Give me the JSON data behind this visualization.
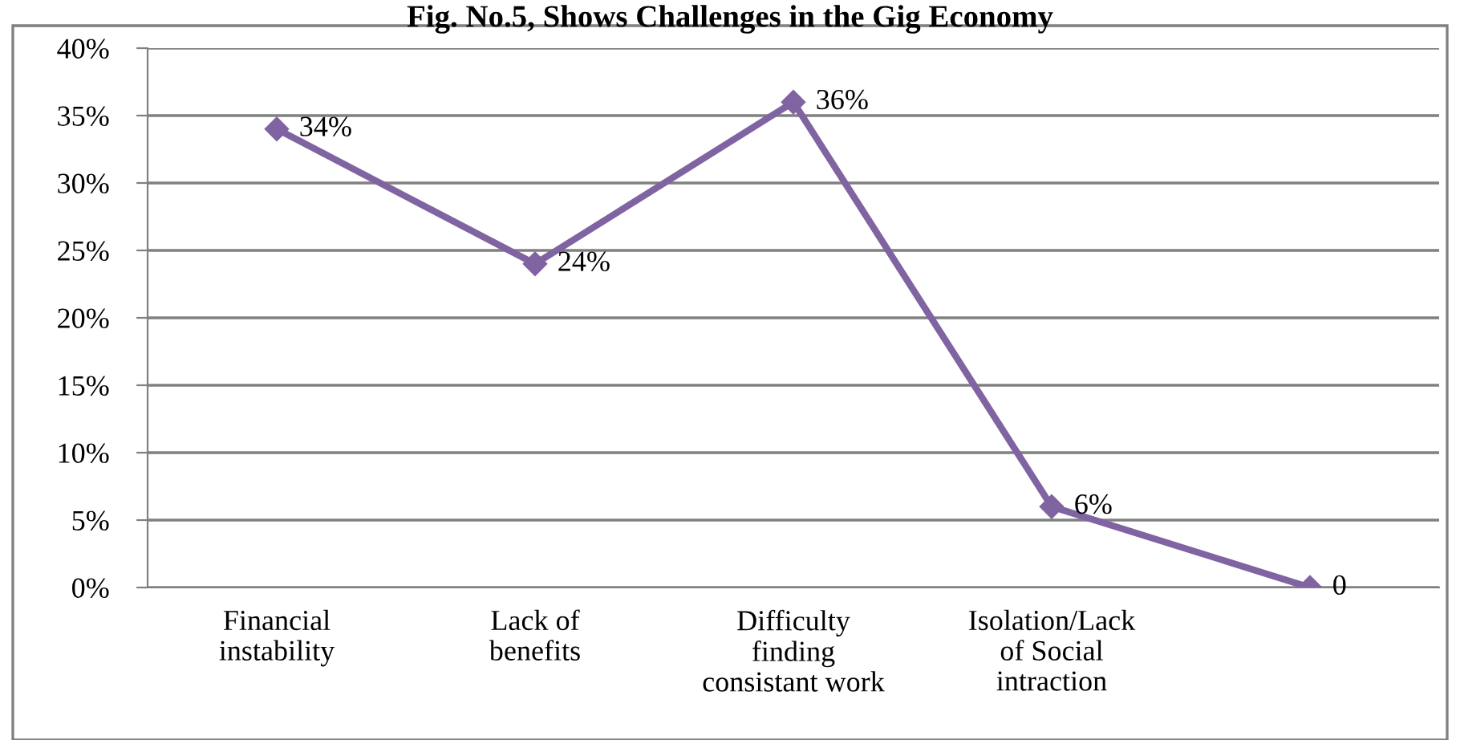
{
  "chart_data": {
    "type": "line",
    "title": "Fig. No.5, Shows Challenges in the Gig Economy",
    "categories": [
      "Financial\ninstability",
      "Lack of\nbenefits",
      "Difficulty\nfinding\nconsistant work",
      "Isolation/Lack\nof Social\nintraction",
      null
    ],
    "series": [
      {
        "color": "#8064a2",
        "values": [
          34,
          24,
          36,
          6,
          0
        ],
        "value_labels": [
          "34%",
          "24%",
          "36%",
          "6%",
          "0"
        ]
      }
    ],
    "ylim": [
      0,
      40
    ],
    "yticks": [
      {
        "value": 0,
        "label": "0%"
      },
      {
        "value": 5,
        "label": "5%"
      },
      {
        "value": 10,
        "label": "10%"
      },
      {
        "value": 15,
        "label": "15%"
      },
      {
        "value": 20,
        "label": "20%"
      },
      {
        "value": 25,
        "label": "25%"
      },
      {
        "value": 30,
        "label": "30%"
      },
      {
        "value": 35,
        "label": "35%"
      },
      {
        "value": 40,
        "label": "40%"
      }
    ],
    "grid": "y",
    "marker": "diamond",
    "line_style": "solid",
    "legend": false
  }
}
